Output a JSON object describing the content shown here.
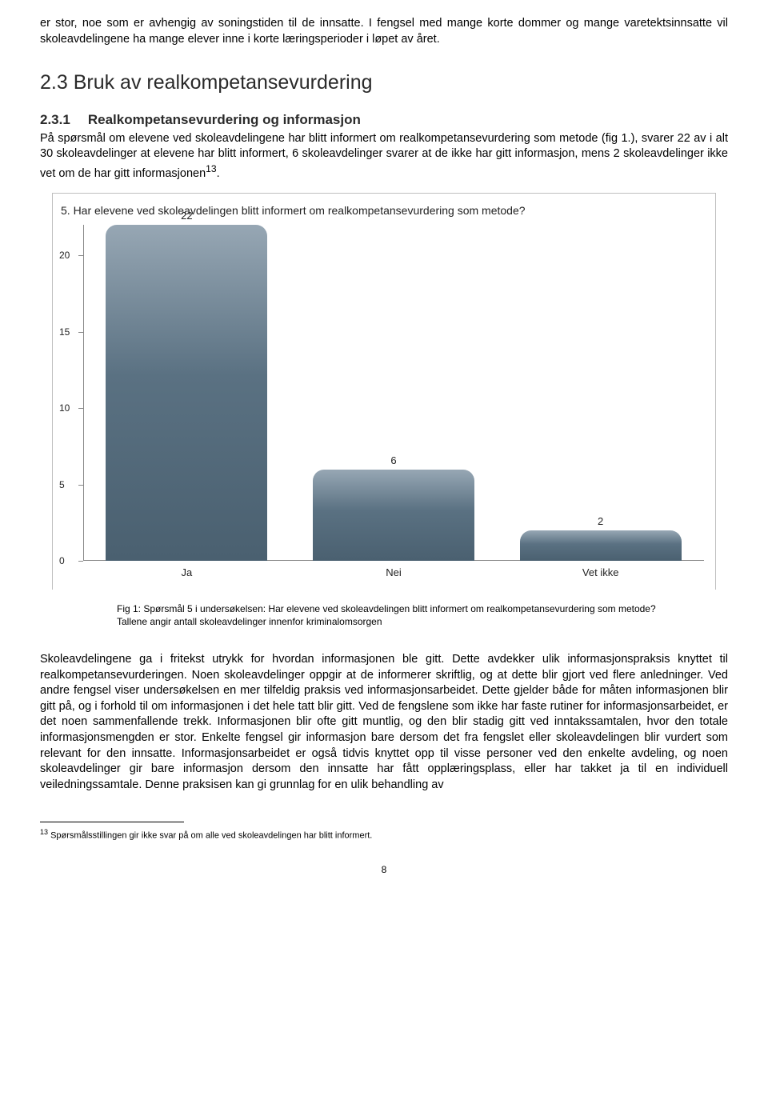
{
  "para1": "er stor, noe som er avhengig av soningstiden til de innsatte. I fengsel med mange korte dommer og mange varetektsinnsatte vil skoleavdelingene ha mange elever inne i korte læringsperioder i løpet av året.",
  "heading2": "2.3 Bruk av realkompetansevurdering",
  "heading3_num": "2.3.1",
  "heading3_title": "Realkompetansevurdering og informasjon",
  "para2": "På spørsmål om elevene ved skoleavdelingene har blitt informert om realkompetansevurdering som metode (fig 1.), svarer 22 av i alt 30 skoleavdelinger at elevene har blitt informert, 6 skoleavdelinger svarer at de ikke har gitt informasjon, mens 2 skoleavdelinger ikke vet om de har gitt informasjonen",
  "para2_sup": "13",
  "para2_tail": ".",
  "chart": {
    "type": "bar",
    "title": "5. Har elevene ved skoleavdelingen blitt informert om realkompetansevurdering som  metode?",
    "categories": [
      "Ja",
      "Nei",
      "Vet ikke"
    ],
    "values": [
      22,
      6,
      2
    ],
    "ymax": 22,
    "yticks": [
      0,
      5,
      10,
      15,
      20
    ],
    "bar_gradient_top": "#97a7b4",
    "bar_gradient_mid": "#5a7182",
    "bar_gradient_bot": "#4a6070",
    "border_color": "#bfbfbf",
    "background_color": "#ffffff",
    "axis_color": "#888888",
    "text_color": "#222222",
    "title_fontsize": 14,
    "label_fontsize": 13,
    "bar_width_pct": 78,
    "bar_radius": 14
  },
  "caption_line1": "Fig 1: Spørsmål 5 i undersøkelsen: Har elevene ved skoleavdelingen blitt informert om realkompetansevurdering som metode?",
  "caption_line2": "Tallene angir antall skoleavdelinger innenfor kriminalomsorgen",
  "para3": "Skoleavdelingene ga i fritekst utrykk for hvordan informasjonen ble gitt. Dette avdekker ulik informasjonspraksis knyttet til realkompetansevurderingen. Noen skoleavdelinger oppgir at de informerer skriftlig, og at dette blir gjort ved flere anledninger. Ved andre fengsel viser undersøkelsen en mer tilfeldig praksis ved informasjonsarbeidet. Dette gjelder både for måten informasjonen blir gitt på, og i forhold til om informasjonen i det hele tatt blir gitt. Ved de fengslene som ikke har faste rutiner for informasjonsarbeidet, er det noen sammenfallende trekk. Informasjonen blir ofte gitt muntlig, og den blir stadig gitt ved inntakssamtalen, hvor den totale informasjonsmengden er stor. Enkelte fengsel gir informasjon bare dersom det fra fengslet eller skoleavdelingen blir vurdert som relevant for den innsatte. Informasjonsarbeidet er også tidvis knyttet opp til visse personer ved den enkelte avdeling, og noen skoleavdelinger gir bare informasjon dersom den innsatte har fått opplæringsplass, eller har takket ja til en individuell veiledningssamtale. Denne praksisen kan gi grunnlag for en ulik behandling av",
  "footnote_sup": "13",
  "footnote_text": " Spørsmålsstillingen gir ikke svar på om alle ved skoleavdelingen har blitt informert.",
  "page_number": "8"
}
